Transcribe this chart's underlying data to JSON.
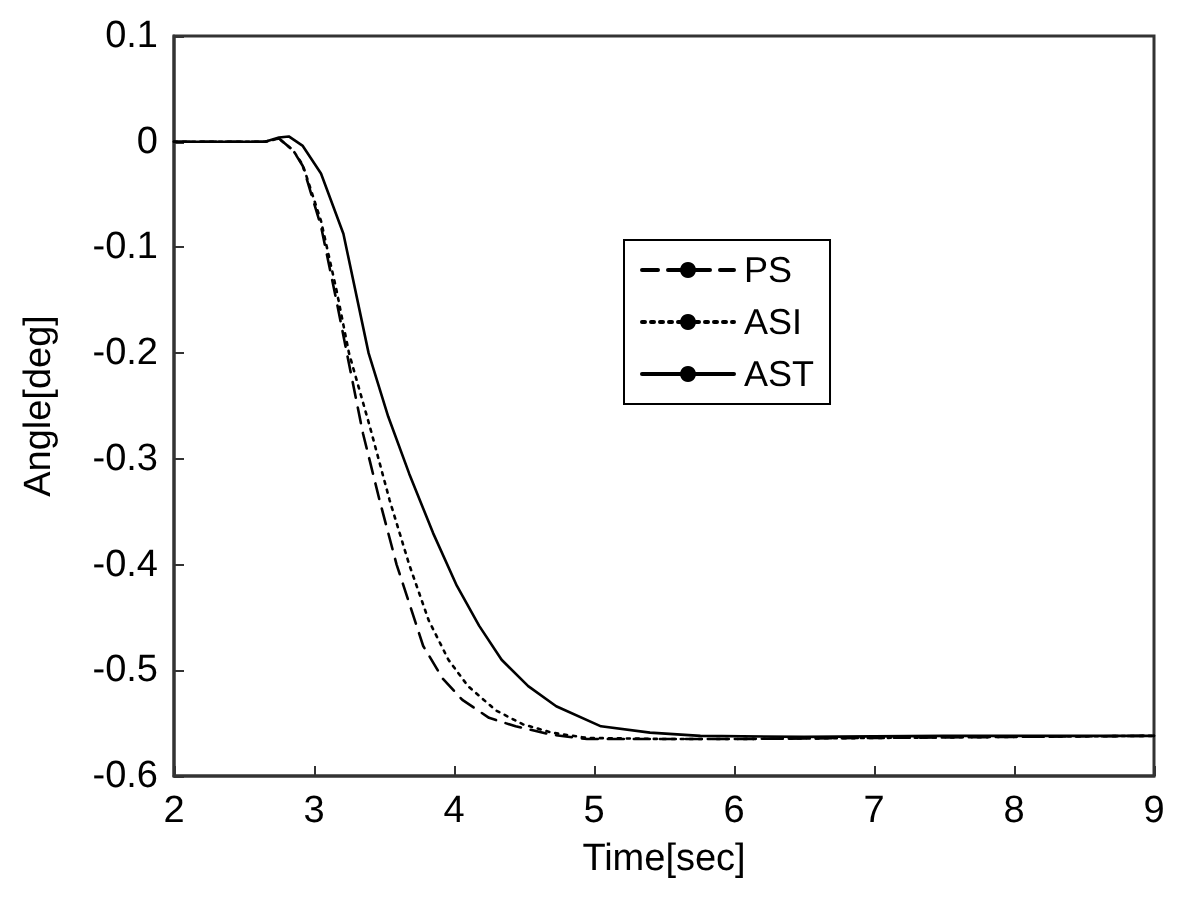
{
  "chart_data": {
    "type": "line",
    "xlabel": "Time[sec]",
    "ylabel": "Angle[deg]",
    "xlim": [
      2,
      9
    ],
    "ylim": [
      -0.6,
      0.1
    ],
    "xticks": [
      2,
      3,
      4,
      5,
      6,
      7,
      8,
      9
    ],
    "yticks": [
      -0.6,
      -0.5,
      -0.4,
      -0.3,
      -0.2,
      -0.1,
      0,
      0.1
    ],
    "grid": false,
    "legend": "top right",
    "marker": "none",
    "series": [
      {
        "name": "PS",
        "color": "#000000",
        "line_style": "dashed",
        "x": [
          2,
          2.5,
          2.65,
          2.75,
          2.85,
          2.92,
          3.05,
          3.16,
          3.25,
          3.35,
          3.47,
          3.59,
          3.78,
          3.92,
          4.06,
          4.25,
          4.44,
          4.7,
          4.95,
          5.5,
          6,
          7,
          8,
          9
        ],
        "values": [
          0,
          0,
          0,
          0.003,
          -0.008,
          -0.023,
          -0.08,
          -0.15,
          -0.21,
          -0.276,
          -0.34,
          -0.4,
          -0.477,
          -0.508,
          -0.528,
          -0.545,
          -0.553,
          -0.561,
          -0.565,
          -0.565,
          -0.565,
          -0.564,
          -0.563,
          -0.562
        ]
      },
      {
        "name": "ASI",
        "color": "#000000",
        "line_style": "dotted",
        "x": [
          2,
          2.5,
          2.65,
          2.75,
          2.85,
          2.92,
          3.05,
          3.16,
          3.25,
          3.4,
          3.54,
          3.68,
          3.82,
          3.96,
          4.1,
          4.3,
          4.49,
          4.7,
          4.95,
          5.5,
          6,
          7,
          8,
          9
        ],
        "values": [
          0,
          0,
          0,
          0.003,
          -0.008,
          -0.022,
          -0.075,
          -0.14,
          -0.2,
          -0.27,
          -0.339,
          -0.4,
          -0.453,
          -0.49,
          -0.515,
          -0.538,
          -0.551,
          -0.559,
          -0.564,
          -0.565,
          -0.565,
          -0.564,
          -0.563,
          -0.562
        ]
      },
      {
        "name": "AST",
        "color": "#000000",
        "line_style": "solid",
        "x": [
          2,
          2.5,
          2.65,
          2.75,
          2.82,
          2.92,
          3.05,
          3.21,
          3.39,
          3.53,
          3.68,
          3.85,
          4.02,
          4.18,
          4.34,
          4.53,
          4.73,
          5.05,
          5.4,
          5.76,
          6.5,
          7.5,
          9
        ],
        "values": [
          0,
          0,
          0,
          0.004,
          0.005,
          -0.004,
          -0.03,
          -0.087,
          -0.2,
          -0.26,
          -0.314,
          -0.37,
          -0.42,
          -0.458,
          -0.49,
          -0.515,
          -0.534,
          -0.553,
          -0.559,
          -0.562,
          -0.563,
          -0.562,
          -0.562
        ]
      }
    ]
  }
}
